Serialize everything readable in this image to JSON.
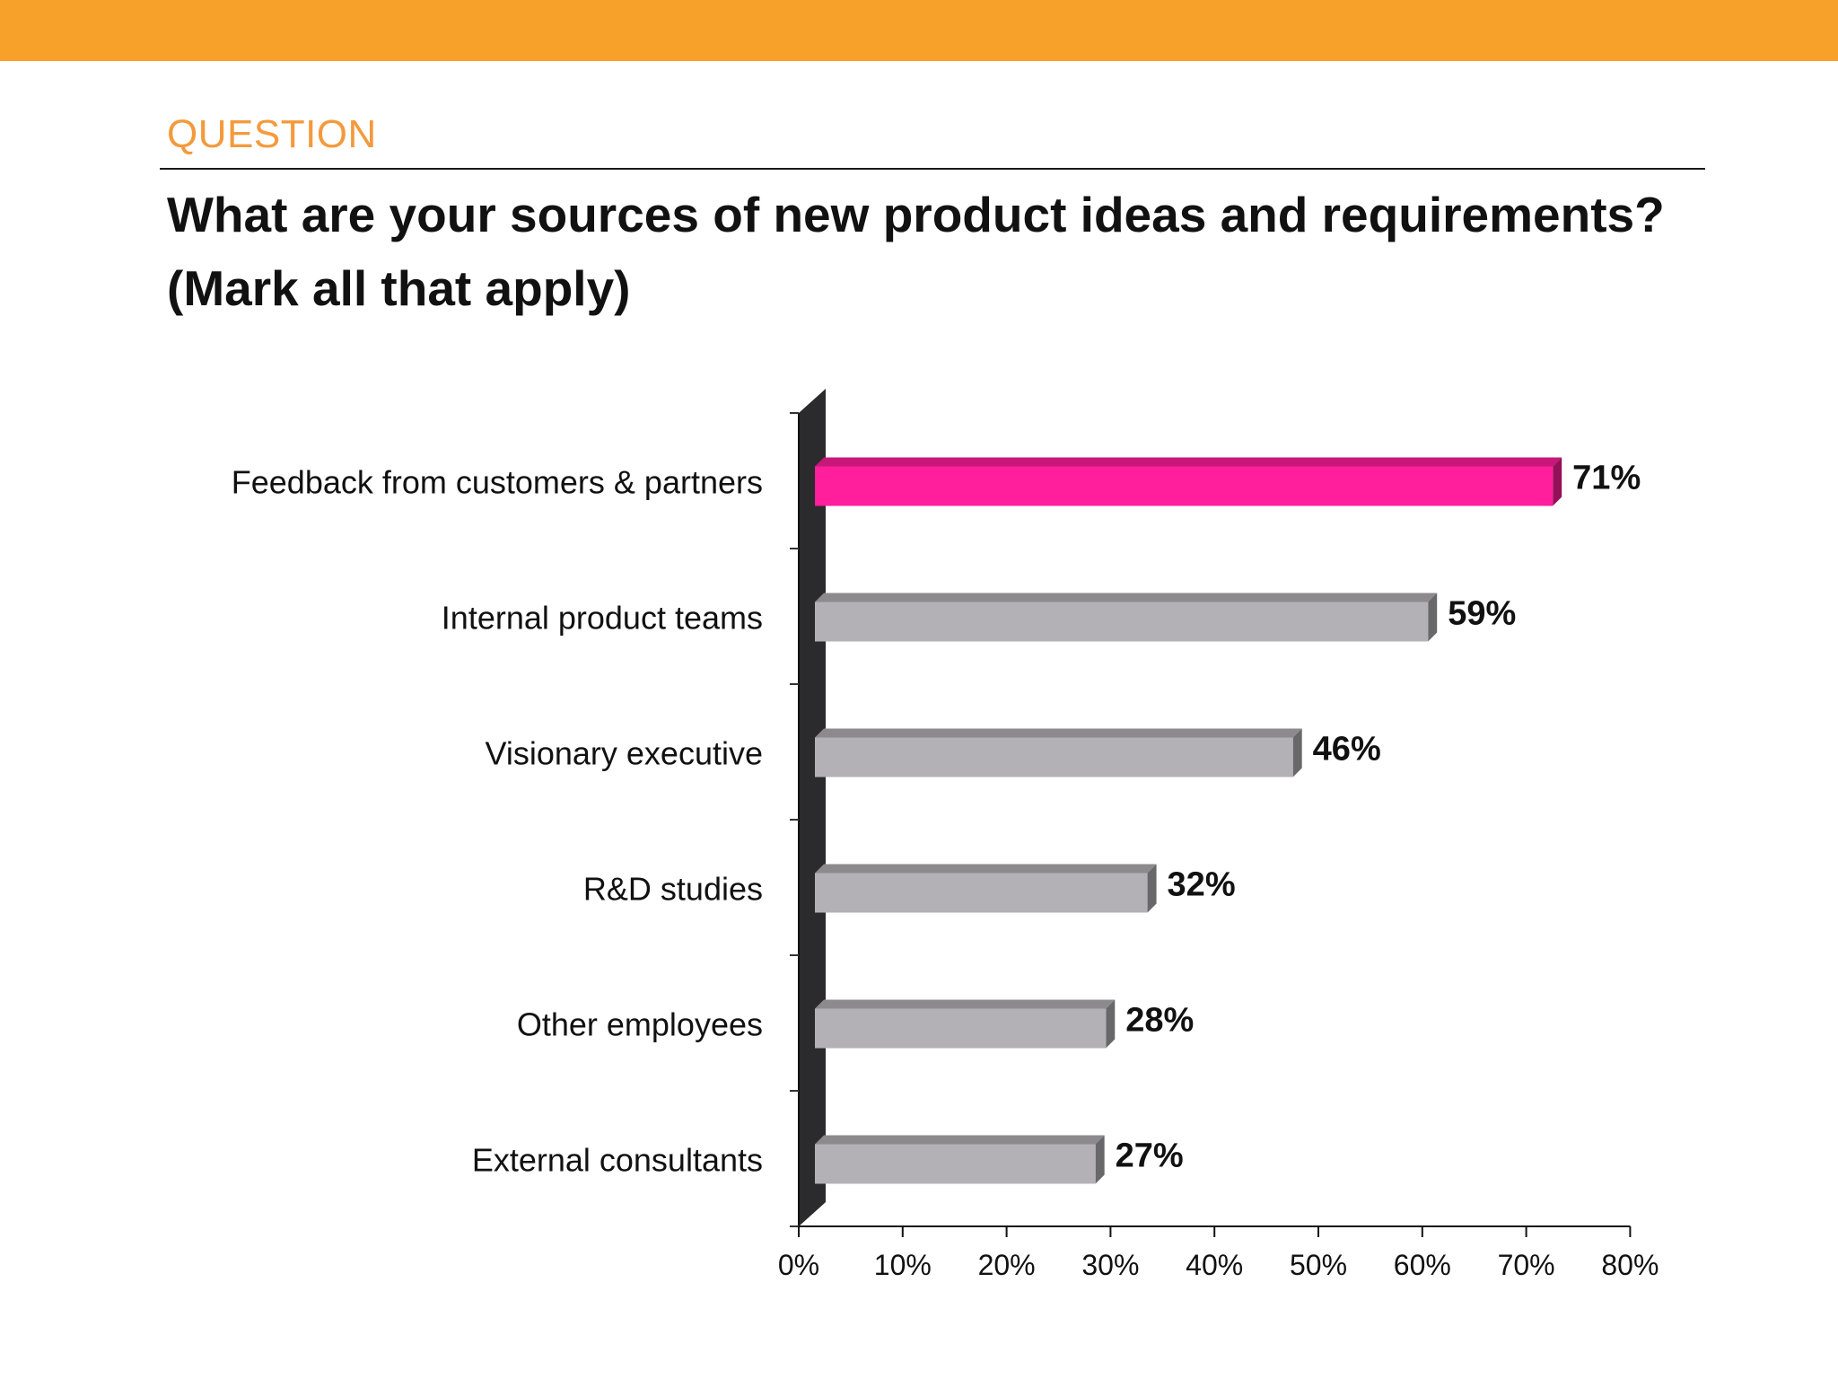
{
  "header": {
    "kicker": "QUESTION",
    "title_line1": "What are your sources of new product ideas and requirements?",
    "title_line2": "(Mark all that apply)"
  },
  "colors": {
    "band": "#F7A02A",
    "kicker": "#F49A3C",
    "highlight_bar": "#FF1E9B",
    "default_bar": "#B3B1B5",
    "wall": "#2B2A2C"
  },
  "chart_data": {
    "type": "bar",
    "orientation": "horizontal",
    "style": "3d",
    "categories": [
      "Feedback from customers & partners",
      "Internal product teams",
      "Visionary executive",
      "R&D studies",
      "Other employees",
      "External consultants"
    ],
    "values": [
      71,
      59,
      46,
      32,
      28,
      27
    ],
    "value_labels": [
      "71%",
      "59%",
      "46%",
      "32%",
      "28%",
      "27%"
    ],
    "highlighted_category": "Feedback from customers & partners",
    "x_ticks": [
      "0%",
      "10%",
      "20%",
      "30%",
      "40%",
      "50%",
      "60%",
      "70%",
      "80%"
    ],
    "xlim": [
      0,
      80
    ],
    "grid": false,
    "legend": "none"
  }
}
